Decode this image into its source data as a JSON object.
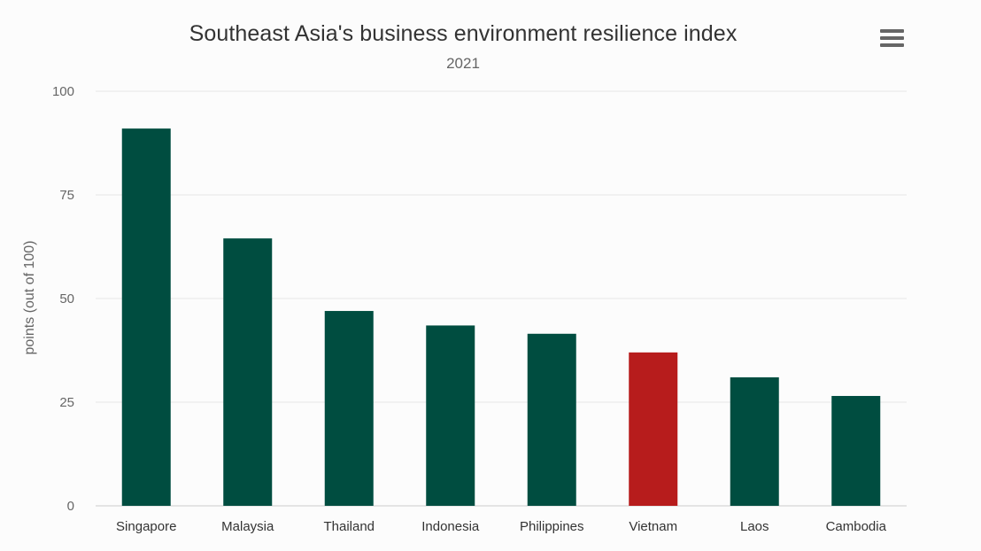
{
  "header": {
    "menu_icon": "hamburger-menu-icon"
  },
  "chart_data": {
    "type": "bar",
    "title": "Southeast Asia's business environment resilience index",
    "subtitle": "2021",
    "xlabel": "",
    "ylabel": "points (out of 100)",
    "ylim": [
      0,
      100
    ],
    "yticks": [
      0,
      25,
      50,
      75,
      100
    ],
    "grid": true,
    "categories": [
      "Singapore",
      "Malaysia",
      "Thailand",
      "Indonesia",
      "Philippines",
      "Vietnam",
      "Laos",
      "Cambodia"
    ],
    "values": [
      91,
      64.5,
      47,
      43.5,
      41.5,
      37,
      31,
      26.5
    ],
    "colors": {
      "default": "#004d40",
      "highlight": "#b71c1c",
      "highlight_category": "Vietnam",
      "grid": "#e6e6e6",
      "tick_label": "#666666",
      "category_label": "#333333"
    }
  }
}
